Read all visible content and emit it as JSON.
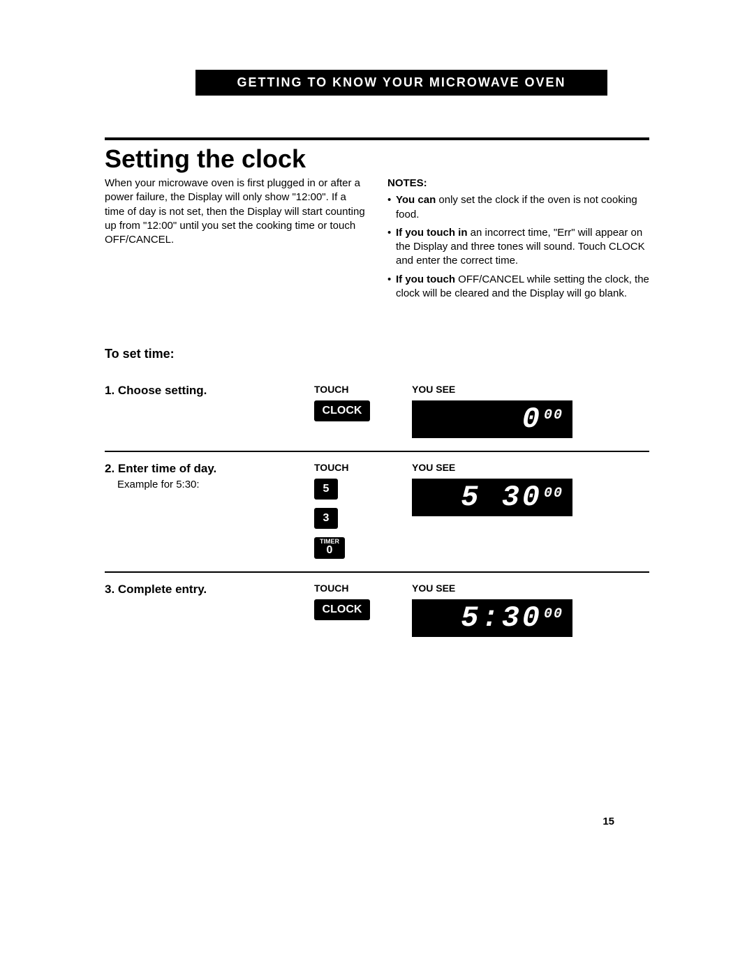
{
  "header": "GETTING TO KNOW YOUR MICROWAVE OVEN",
  "title": "Setting the clock",
  "intro": "When your microwave oven is first plugged in or after a power failure, the Display will only show \"12:00\". If a time of day is not set, then the Display will start counting up from \"12:00\" until you set the cooking time or touch OFF/CANCEL.",
  "notes_label": "NOTES:",
  "notes": [
    {
      "bold": "You can",
      "rest": " only set the clock if the oven is not cooking food."
    },
    {
      "bold": "If you touch in",
      "rest": " an incorrect time, \"Err\" will appear on the Display and three tones will sound. Touch CLOCK and enter the correct time."
    },
    {
      "bold": "If you touch",
      "rest": " OFF/CANCEL while setting the clock, the clock will be cleared and the Display will go blank."
    }
  ],
  "subhead": "To set time:",
  "col_touch": "TOUCH",
  "col_see": "YOU SEE",
  "steps": {
    "s1": {
      "title": "1. Choose setting.",
      "touch": [
        "CLOCK"
      ],
      "lcd_big": "0",
      "lcd_small": "00"
    },
    "s2": {
      "title": "2. Enter time of day.",
      "sub": "Example for 5:30:",
      "touch": [
        "5",
        "3"
      ],
      "timer_label": "TIMER",
      "timer_num": "0",
      "lcd_big": "5 30",
      "lcd_small": "00"
    },
    "s3": {
      "title": "3. Complete entry.",
      "touch": [
        "CLOCK"
      ],
      "lcd_big": "5:30",
      "lcd_small": "00"
    }
  },
  "page_number": "15"
}
